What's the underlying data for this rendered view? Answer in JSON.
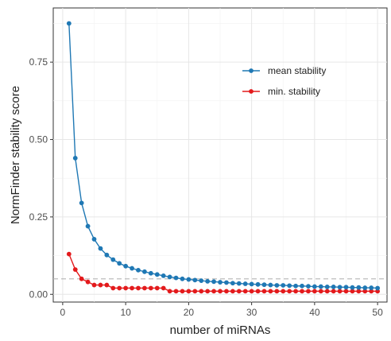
{
  "chart_data": {
    "type": "line",
    "title": "",
    "xlabel": "number of miRNAs",
    "ylabel": "NormFinder stability score",
    "xlim": [
      -1.5,
      51.5
    ],
    "ylim": [
      -0.025,
      0.925
    ],
    "xticks": [
      0,
      10,
      20,
      30,
      40,
      50
    ],
    "xtick_labels": [
      "0",
      "10",
      "20",
      "30",
      "40",
      "50"
    ],
    "yticks": [
      0.0,
      0.25,
      0.5,
      0.75
    ],
    "ytick_labels": [
      "0.00",
      "0.25",
      "0.50",
      "0.75"
    ],
    "grid": true,
    "legend_position": "top-right",
    "reference_line": {
      "y": 0.05,
      "style": "dashed",
      "color": "#b5b5b5"
    },
    "x": [
      1,
      2,
      3,
      4,
      5,
      6,
      7,
      8,
      9,
      10,
      11,
      12,
      13,
      14,
      15,
      16,
      17,
      18,
      19,
      20,
      21,
      22,
      23,
      24,
      25,
      26,
      27,
      28,
      29,
      30,
      31,
      32,
      33,
      34,
      35,
      36,
      37,
      38,
      39,
      40,
      41,
      42,
      43,
      44,
      45,
      46,
      47,
      48,
      49,
      50
    ],
    "series": [
      {
        "name": "mean stability",
        "color": "#1f78b4",
        "values": [
          0.875,
          0.44,
          0.295,
          0.22,
          0.178,
          0.148,
          0.127,
          0.112,
          0.1,
          0.091,
          0.084,
          0.078,
          0.073,
          0.068,
          0.064,
          0.06,
          0.056,
          0.053,
          0.05,
          0.048,
          0.046,
          0.044,
          0.042,
          0.041,
          0.039,
          0.038,
          0.036,
          0.035,
          0.034,
          0.033,
          0.032,
          0.031,
          0.03,
          0.029,
          0.029,
          0.028,
          0.027,
          0.027,
          0.026,
          0.025,
          0.025,
          0.024,
          0.024,
          0.023,
          0.023,
          0.022,
          0.022,
          0.021,
          0.021,
          0.02
        ]
      },
      {
        "name": "min. stability",
        "color": "#e31a1c",
        "values": [
          0.13,
          0.08,
          0.05,
          0.04,
          0.03,
          0.03,
          0.03,
          0.02,
          0.02,
          0.02,
          0.02,
          0.02,
          0.02,
          0.02,
          0.02,
          0.02,
          0.01,
          0.01,
          0.01,
          0.01,
          0.01,
          0.01,
          0.01,
          0.01,
          0.01,
          0.01,
          0.01,
          0.01,
          0.01,
          0.01,
          0.01,
          0.01,
          0.01,
          0.01,
          0.01,
          0.01,
          0.01,
          0.01,
          0.01,
          0.01,
          0.01,
          0.01,
          0.01,
          0.01,
          0.01,
          0.01,
          0.01,
          0.01,
          0.01,
          0.01
        ]
      }
    ]
  }
}
